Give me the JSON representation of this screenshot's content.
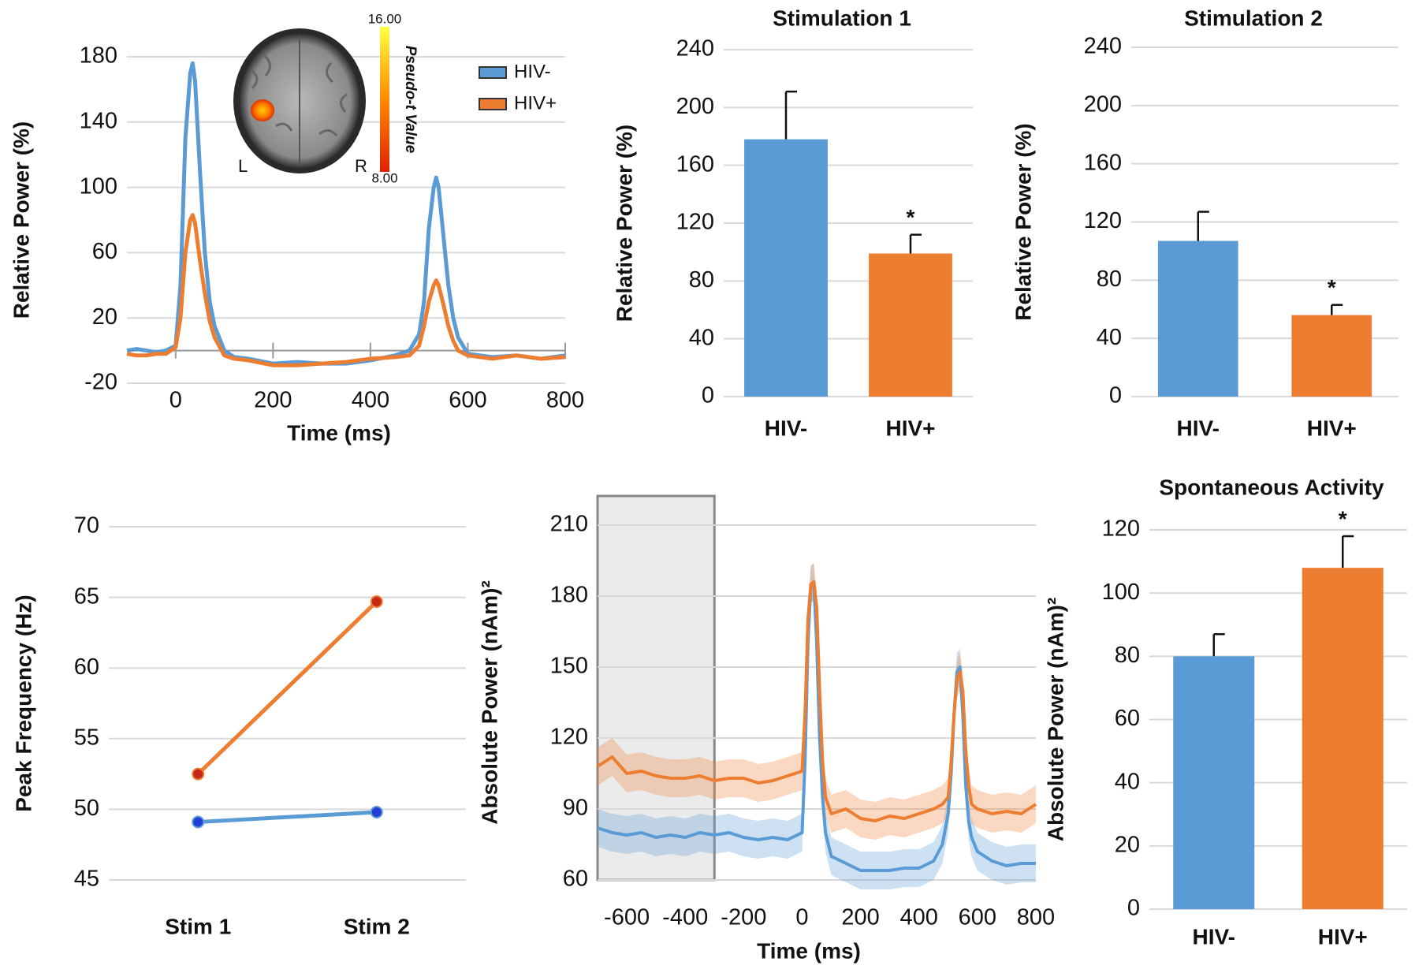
{
  "chart_data": [
    {
      "type": "line",
      "y_label": "Relative Power (%)",
      "x_label": "Time (ms)",
      "xlim": [
        -100,
        800
      ],
      "xticks": [
        0,
        200,
        400,
        600,
        800
      ],
      "ylim": [
        -20,
        180
      ],
      "yticks": [
        -20,
        20,
        60,
        100,
        140,
        180
      ],
      "x_axis_crossing": 0,
      "grid": true,
      "legend": "upper right",
      "x": [
        -100,
        -80,
        -60,
        -40,
        -20,
        0,
        10,
        20,
        30,
        35,
        40,
        50,
        60,
        70,
        80,
        100,
        120,
        150,
        200,
        250,
        300,
        350,
        400,
        450,
        480,
        500,
        510,
        520,
        530,
        535,
        540,
        550,
        560,
        570,
        580,
        600,
        650,
        700,
        750,
        800
      ],
      "series": [
        {
          "name": "HIV-",
          "color": "#5b9bd5",
          "values": [
            0,
            1,
            0,
            -1,
            0,
            3,
            40,
            130,
            170,
            176,
            165,
            110,
            60,
            30,
            15,
            0,
            -4,
            -5,
            -8,
            -7,
            -8,
            -8,
            -6,
            -3,
            0,
            10,
            30,
            75,
            100,
            106,
            100,
            70,
            40,
            20,
            8,
            -2,
            -4,
            -3,
            -5,
            -3
          ]
        },
        {
          "name": "HIV+",
          "color": "#ed7d31",
          "values": [
            -2,
            -3,
            -3,
            -2,
            -2,
            2,
            20,
            60,
            80,
            83,
            78,
            55,
            35,
            18,
            8,
            -3,
            -5,
            -6,
            -9,
            -9,
            -8,
            -7,
            -5,
            -4,
            -3,
            3,
            15,
            30,
            40,
            43,
            40,
            28,
            15,
            6,
            0,
            -3,
            -5,
            -3,
            -5,
            -4
          ]
        }
      ],
      "inset_labels": [
        "L",
        "R"
      ],
      "colorbar": {
        "label": "Pseudo-t Value",
        "ticks": [
          {
            "value": 16,
            "label": "16.00"
          },
          {
            "value": 8,
            "label": "8.00"
          }
        ]
      }
    },
    {
      "type": "bar",
      "title": "Stimulation 1",
      "y_label": "Relative Power (%)",
      "categories": [
        "HIV-",
        "HIV+"
      ],
      "values": [
        178,
        99
      ],
      "errors": [
        33,
        13
      ],
      "colors": [
        "#5b9bd5",
        "#ed7d31"
      ],
      "significance": [
        null,
        "*"
      ],
      "ylim": [
        0,
        240
      ],
      "yticks": [
        0,
        40,
        80,
        120,
        160,
        200,
        240
      ],
      "grid": true
    },
    {
      "type": "bar",
      "title": "Stimulation 2",
      "y_label": "Relative Power (%)",
      "categories": [
        "HIV-",
        "HIV+"
      ],
      "values": [
        107,
        56
      ],
      "errors": [
        20,
        7
      ],
      "colors": [
        "#5b9bd5",
        "#ed7d31"
      ],
      "significance": [
        null,
        "*"
      ],
      "ylim": [
        0,
        240
      ],
      "yticks": [
        0,
        40,
        80,
        120,
        160,
        200,
        240
      ],
      "grid": true
    },
    {
      "type": "line",
      "y_label": "Peak Frequency (Hz)",
      "categories": [
        "Stim 1",
        "Stim 2"
      ],
      "ylim": [
        45,
        70
      ],
      "yticks": [
        45,
        50,
        55,
        60,
        65,
        70
      ],
      "grid": true,
      "series": [
        {
          "color": "#5b9bd5",
          "marker_color": "#1f3fd6",
          "values": [
            49.1,
            49.8
          ]
        },
        {
          "color": "#ed7d31",
          "marker_color": "#c62818",
          "values": [
            52.5,
            64.7
          ]
        }
      ]
    },
    {
      "type": "line",
      "y_label": "Absolute Power (nAm)²",
      "x_label": "Time (ms)",
      "xlim": [
        -700,
        800
      ],
      "xticks": [
        -600,
        -400,
        -200,
        0,
        200,
        400,
        600,
        800
      ],
      "ylim": [
        60,
        210
      ],
      "yticks": [
        60,
        90,
        120,
        150,
        180,
        210
      ],
      "grid": true,
      "baseline_window": [
        -700,
        -300
      ],
      "x": [
        -700,
        -650,
        -600,
        -550,
        -500,
        -450,
        -400,
        -350,
        -300,
        -250,
        -200,
        -150,
        -100,
        -50,
        0,
        10,
        20,
        30,
        40,
        50,
        60,
        70,
        80,
        100,
        150,
        200,
        250,
        300,
        350,
        400,
        450,
        480,
        500,
        510,
        520,
        530,
        540,
        550,
        560,
        570,
        580,
        600,
        650,
        700,
        750,
        800
      ],
      "series": [
        {
          "color": "#5b9bd5",
          "band": 8,
          "values": [
            82,
            80,
            79,
            80,
            78,
            79,
            78,
            80,
            79,
            80,
            78,
            77,
            78,
            77,
            80,
            110,
            160,
            185,
            186,
            160,
            120,
            95,
            80,
            70,
            67,
            64,
            64,
            64,
            65,
            65,
            68,
            75,
            88,
            105,
            130,
            148,
            150,
            130,
            100,
            85,
            78,
            72,
            68,
            66,
            67,
            67
          ]
        },
        {
          "color": "#ed7d31",
          "band": 8,
          "values": [
            108,
            112,
            105,
            106,
            104,
            103,
            103,
            104,
            102,
            103,
            103,
            101,
            102,
            104,
            106,
            130,
            170,
            185,
            186,
            175,
            140,
            110,
            95,
            88,
            90,
            86,
            85,
            87,
            86,
            88,
            90,
            92,
            95,
            110,
            130,
            145,
            148,
            140,
            115,
            100,
            92,
            90,
            88,
            89,
            88,
            92
          ]
        }
      ]
    },
    {
      "type": "bar",
      "title": "Spontaneous Activity",
      "y_label": "Absolute Power (nAm)²",
      "categories": [
        "HIV-",
        "HIV+"
      ],
      "values": [
        80,
        108
      ],
      "errors": [
        7,
        10
      ],
      "colors": [
        "#5b9bd5",
        "#ed7d31"
      ],
      "significance": [
        null,
        "*"
      ],
      "ylim": [
        0,
        120
      ],
      "yticks": [
        0,
        20,
        40,
        60,
        80,
        100,
        120
      ],
      "grid": true
    }
  ]
}
